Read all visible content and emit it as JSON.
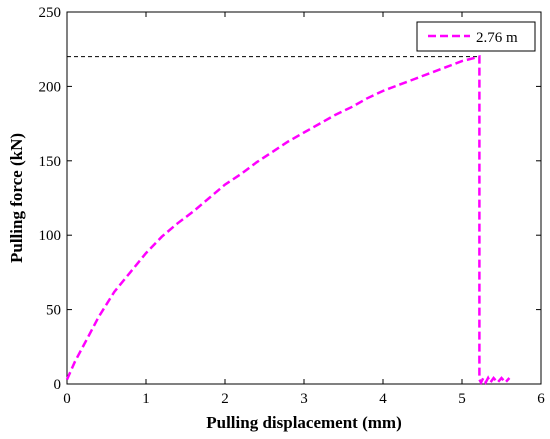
{
  "chart_data": {
    "type": "line",
    "title": "",
    "xlabel": "Pulling displacement (mm)",
    "ylabel": "Pulling force (kN)",
    "xlim": [
      0,
      6
    ],
    "ylim": [
      0,
      250
    ],
    "xticks": [
      "0",
      "1",
      "2",
      "3",
      "4",
      "5",
      "6"
    ],
    "yticks": [
      "0",
      "50",
      "100",
      "150",
      "200",
      "250"
    ],
    "grid": false,
    "legend": {
      "position": "top-right",
      "entries": [
        "2.76 m"
      ]
    },
    "series_color": "#ff00ff",
    "reference_line": {
      "y": 220,
      "x_from": 0,
      "x_to": 5.22,
      "style": "dashed",
      "color": "#000000"
    },
    "series": [
      {
        "name": "2.76 m",
        "style": "dashed",
        "x": [
          0,
          0.1,
          0.25,
          0.4,
          0.6,
          0.8,
          1.0,
          1.2,
          1.4,
          1.6,
          1.8,
          2.0,
          2.2,
          2.4,
          2.6,
          2.8,
          3.0,
          3.2,
          3.4,
          3.6,
          3.8,
          4.0,
          4.2,
          4.4,
          4.6,
          4.8,
          5.0,
          5.15,
          5.22,
          5.22,
          5.24,
          5.27,
          5.3,
          5.33,
          5.36,
          5.4,
          5.45,
          5.5,
          5.55,
          5.6
        ],
        "y": [
          3,
          15,
          30,
          45,
          62,
          75,
          88,
          99,
          108,
          116,
          125,
          134,
          141,
          149,
          156,
          163,
          169,
          175,
          181,
          186,
          192,
          197,
          201,
          205,
          209,
          213,
          217,
          219,
          220,
          3,
          1,
          4,
          1,
          4,
          1,
          4,
          1,
          4,
          1,
          4
        ]
      }
    ]
  }
}
